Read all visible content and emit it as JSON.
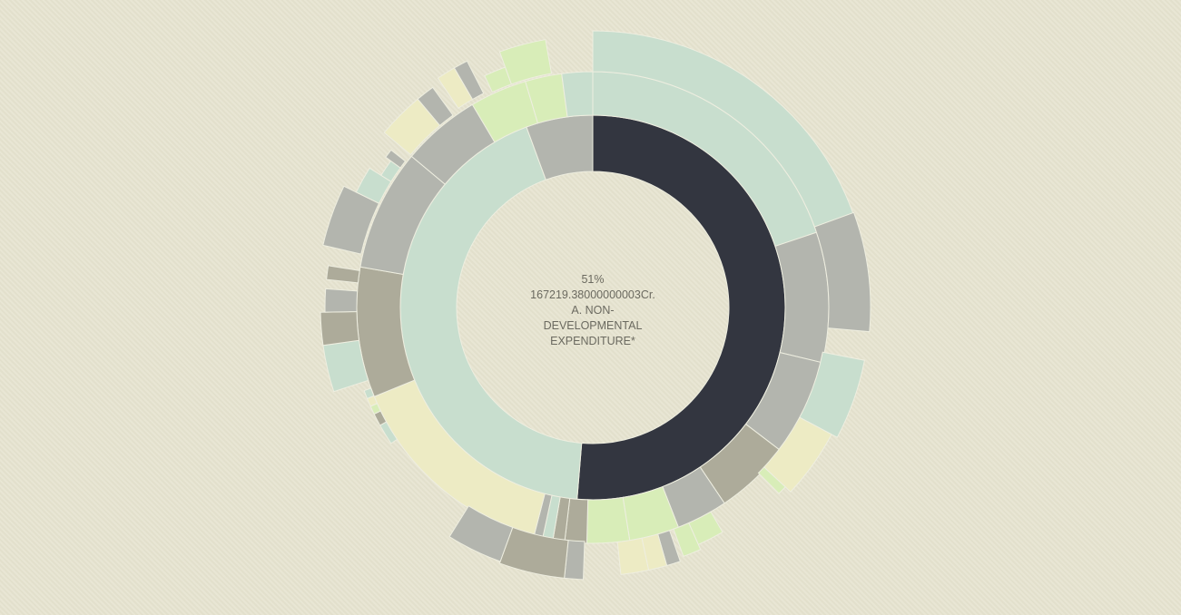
{
  "colors": {
    "background": "#e6e3cf",
    "highlight": "#333640",
    "palette": [
      "#c8dece",
      "#b3b5ae",
      "#adab9a",
      "#edebc4",
      "#d8edb8"
    ]
  },
  "tooltip": {
    "percent": "51%",
    "amount": "167219.38000000003Cr.",
    "name_line1": "A. NON-",
    "name_line2": "DEVELOPMENTAL",
    "name_line3": "EXPENDITURE*"
  },
  "chart_data": {
    "type": "sunburst",
    "title": "",
    "highlighted": "A. NON-DEVELOPMENTAL EXPENDITURE*",
    "ring1": [
      {
        "name": "A. NON-DEVELOPMENTAL EXPENDITURE*",
        "share": 51.3,
        "color": "#333640",
        "highlight": true
      },
      {
        "name": "",
        "share": 43.1,
        "color": "#c8dece"
      },
      {
        "name": "",
        "share": 5.6,
        "color": "#b3b5ae"
      }
    ],
    "ring2": [
      {
        "share": 19.8,
        "color": "#c8dece"
      },
      {
        "share": 8.9,
        "color": "#b3b5ae"
      },
      {
        "share": 6.6,
        "color": "#b3b5ae"
      },
      {
        "share": 5.2,
        "color": "#adab9a"
      },
      {
        "share": 3.5,
        "color": "#b3b5ae"
      },
      {
        "share": 3.4,
        "color": "#d8edb8"
      },
      {
        "share": 2.9,
        "color": "#d8edb8"
      },
      {
        "share": 1.5,
        "color": "#adab9a"
      },
      {
        "share": 0.8,
        "color": "#adab9a"
      },
      {
        "share": 0.7,
        "color": "#c8dece"
      },
      {
        "share": 0.6,
        "color": "#b3b5ae"
      },
      {
        "share": 14.8,
        "color": "#edebc4"
      },
      {
        "share": 8.9,
        "color": "#adab9a"
      },
      {
        "share": 8.3,
        "color": "#b3b5ae"
      },
      {
        "share": 5.4,
        "color": "#b3b5ae"
      },
      {
        "share": 3.9,
        "color": "#d8edb8"
      },
      {
        "share": 2.5,
        "color": "#d8edb8"
      },
      {
        "share": 2.1,
        "color": "#c8dece"
      }
    ]
  }
}
